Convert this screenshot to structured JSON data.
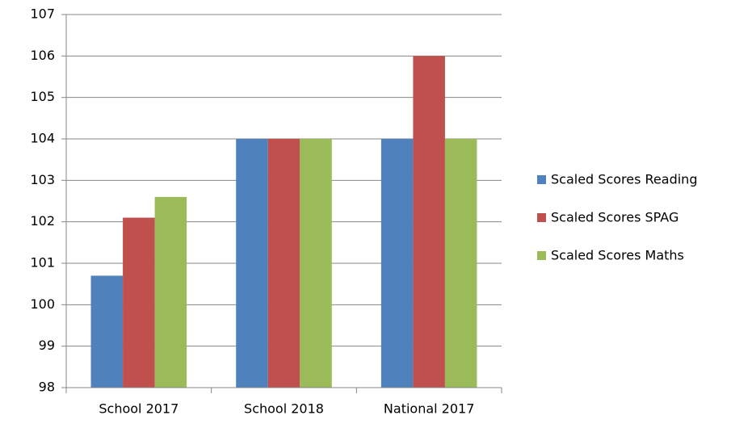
{
  "chart_data": {
    "type": "bar",
    "categories": [
      "School 2017",
      "School 2018",
      "National 2017"
    ],
    "series": [
      {
        "name": "Scaled Scores Reading",
        "color": "#4f81bd",
        "values": [
          100.7,
          104,
          104
        ]
      },
      {
        "name": "Scaled Scores SPAG",
        "color": "#c0504d",
        "values": [
          102.1,
          104,
          106
        ]
      },
      {
        "name": "Scaled Scores Maths",
        "color": "#9bbb59",
        "values": [
          102.6,
          104,
          104
        ]
      }
    ],
    "ylim": [
      98,
      107
    ],
    "yticks": [
      98,
      99,
      100,
      101,
      102,
      103,
      104,
      105,
      106,
      107
    ],
    "grid": true,
    "legend": "right"
  }
}
